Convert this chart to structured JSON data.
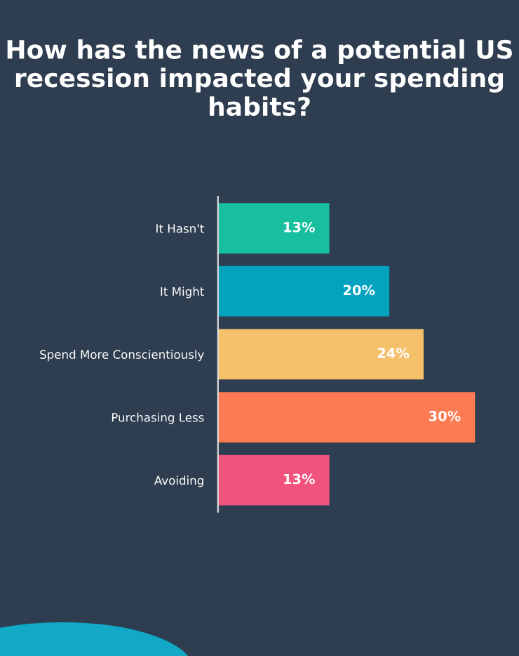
{
  "chart_data": {
    "type": "bar",
    "orientation": "horizontal",
    "title": "How has the news of a potential US recession impacted your spending habits?",
    "categories": [
      "It Hasn't",
      "It Might",
      "Spend More Conscientiously",
      "Purchasing Less",
      "Avoiding"
    ],
    "values": [
      13,
      20,
      24,
      30,
      13
    ],
    "value_labels": [
      "13%",
      "20%",
      "24%",
      "30%",
      "13%"
    ],
    "colors": [
      "#17bf9e",
      "#03a3c0",
      "#f4c06a",
      "#fd7b52",
      "#f1537e"
    ],
    "tick_labels": "y"
  }
}
